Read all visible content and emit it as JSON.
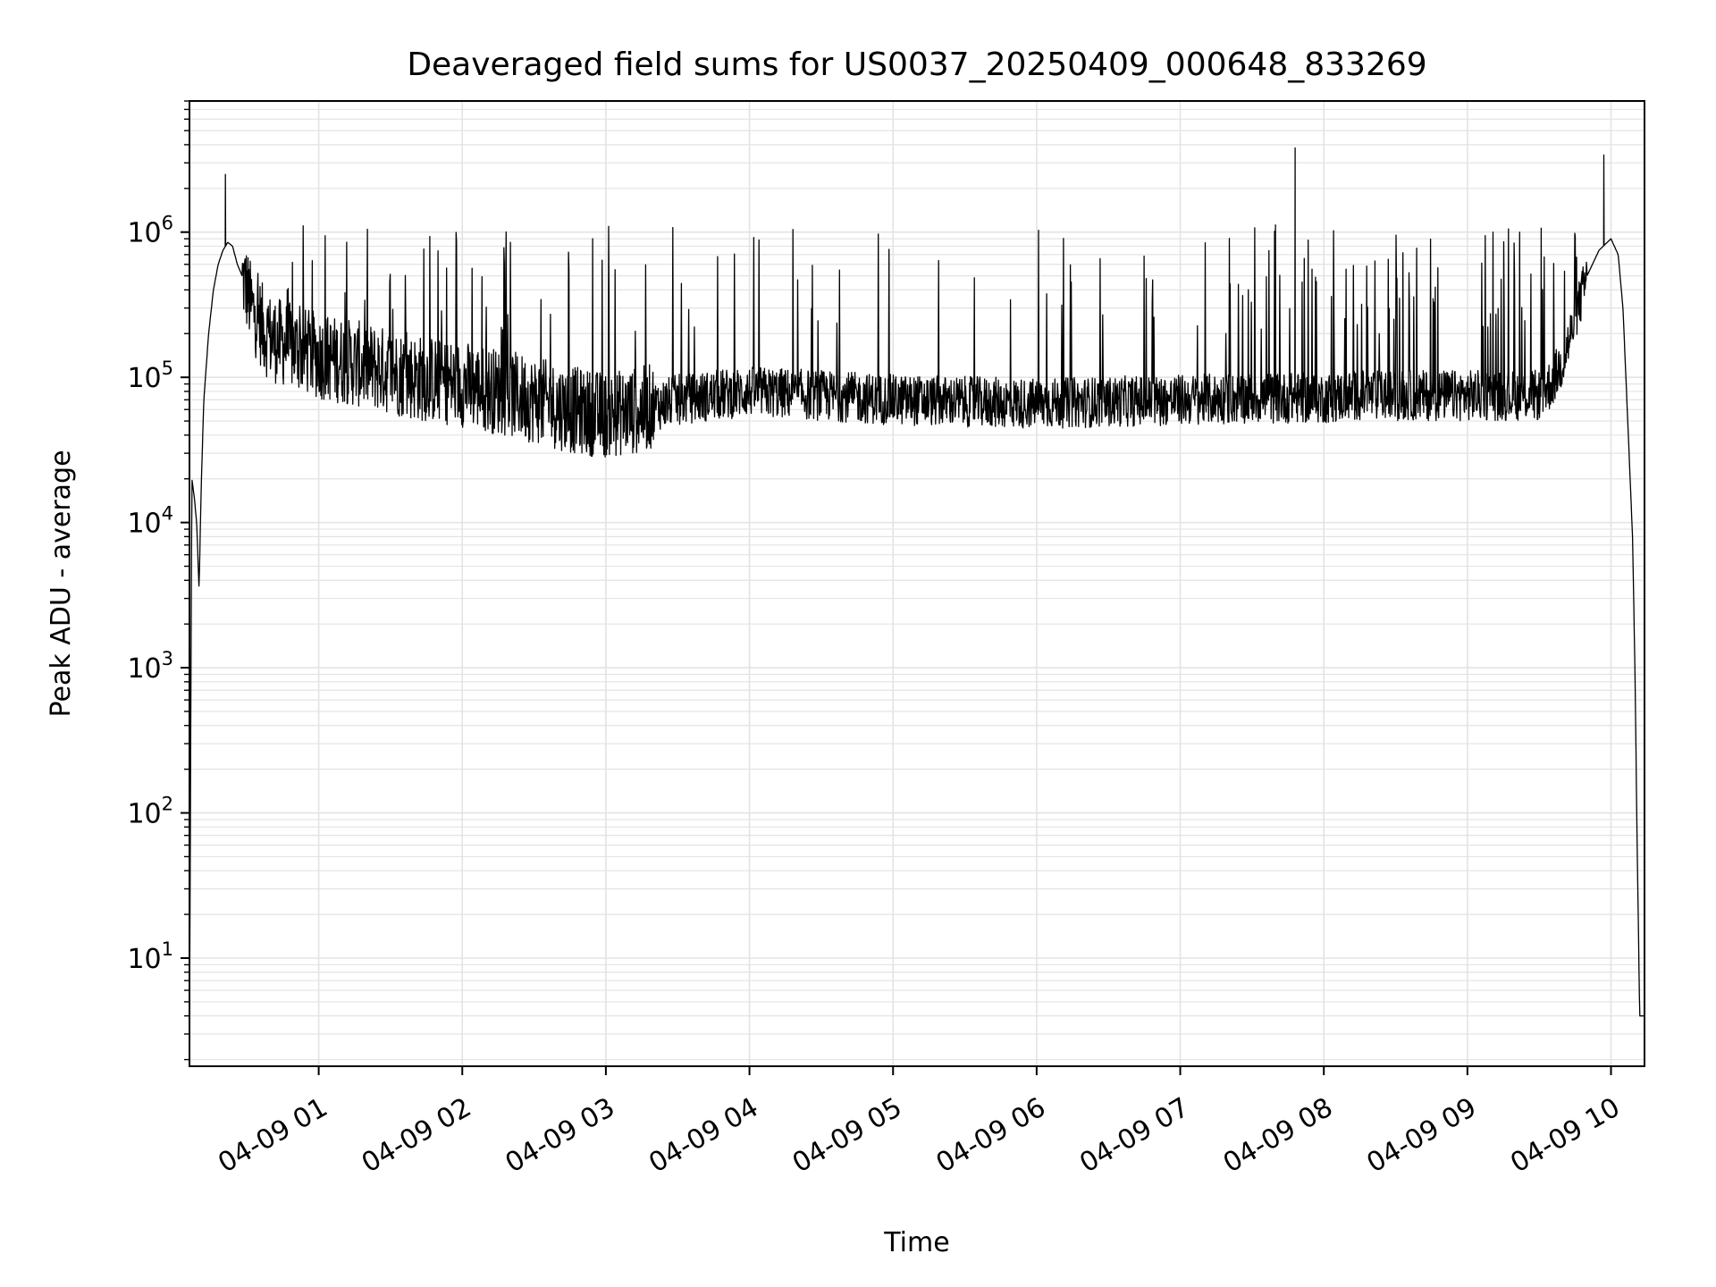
{
  "chart_data": {
    "type": "line",
    "title": "Deaveraged field sums for US0037_20250409_000648_833269",
    "xlabel": "Time",
    "ylabel": "Peak ADU - average",
    "y_scale": "log",
    "ylim": [
      1.8,
      8000000
    ],
    "xlim": [
      "2025-04-09 00:06",
      "2025-04-09 10:14"
    ],
    "grid": true,
    "x_tick_labels": [
      "04-09 01",
      "04-09 02",
      "04-09 03",
      "04-09 04",
      "04-09 05",
      "04-09 06",
      "04-09 07",
      "04-09 08",
      "04-09 09",
      "04-09 10"
    ],
    "x_ticks": [
      "2025-04-09 01:00",
      "2025-04-09 02:00",
      "2025-04-09 03:00",
      "2025-04-09 04:00",
      "2025-04-09 05:00",
      "2025-04-09 06:00",
      "2025-04-09 07:00",
      "2025-04-09 08:00",
      "2025-04-09 09:00",
      "2025-04-09 10:00"
    ],
    "y_ticks": [
      {
        "value": 10,
        "base": "10",
        "exp": "1"
      },
      {
        "value": 100,
        "base": "10",
        "exp": "2"
      },
      {
        "value": 1000,
        "base": "10",
        "exp": "3"
      },
      {
        "value": 10000,
        "base": "10",
        "exp": "4"
      },
      {
        "value": 100000,
        "base": "10",
        "exp": "5"
      },
      {
        "value": 1000000,
        "base": "10",
        "exp": "6"
      }
    ],
    "series": [
      {
        "color": "#000000",
        "x": [
          "00:06",
          "00:07",
          "00:08",
          "00:09",
          "00:10",
          "00:11",
          "00:12",
          "00:14",
          "00:16",
          "00:18",
          "00:20",
          "00:22",
          "00:24",
          "00:26",
          "00:28",
          "00:30",
          "00:32",
          "00:35",
          "00:38",
          "00:42",
          "00:46",
          "00:50",
          "00:55",
          "01:00",
          "01:10",
          "01:20",
          "01:30",
          "01:40",
          "01:50",
          "02:00",
          "02:15",
          "02:30",
          "02:45",
          "03:00",
          "03:15",
          "03:30",
          "03:45",
          "04:00",
          "04:30",
          "05:00",
          "05:30",
          "06:00",
          "06:30",
          "07:00",
          "07:30",
          "08:00",
          "08:15",
          "08:30",
          "09:00",
          "09:30",
          "09:35",
          "09:40",
          "09:45",
          "09:50",
          "09:55",
          "10:00",
          "10:03",
          "10:05",
          "10:07",
          "10:09",
          "10:10",
          "10:11",
          "10:12",
          "10:14"
        ],
        "y": [
          3,
          20000,
          15000,
          10000,
          3500,
          20000,
          70000,
          200000,
          400000,
          600000,
          750000,
          850000,
          800000,
          600000,
          500000,
          400000,
          300000,
          250000,
          200000,
          180000,
          170000,
          160000,
          150000,
          140000,
          130000,
          120000,
          110000,
          100000,
          95000,
          90000,
          80000,
          70000,
          60000,
          55000,
          60000,
          70000,
          75000,
          80000,
          75000,
          70000,
          68000,
          66000,
          68000,
          70000,
          72000,
          72000,
          75000,
          75000,
          75000,
          75000,
          90000,
          130000,
          250000,
          500000,
          750000,
          900000,
          700000,
          300000,
          50000,
          8000,
          1000,
          50,
          4,
          4
        ],
        "spikes": [
          {
            "x": "00:21",
            "y": 2500000
          },
          {
            "x": "07:48",
            "y": 3800000
          },
          {
            "x": "09:57",
            "y": 3400000
          }
        ]
      }
    ]
  }
}
